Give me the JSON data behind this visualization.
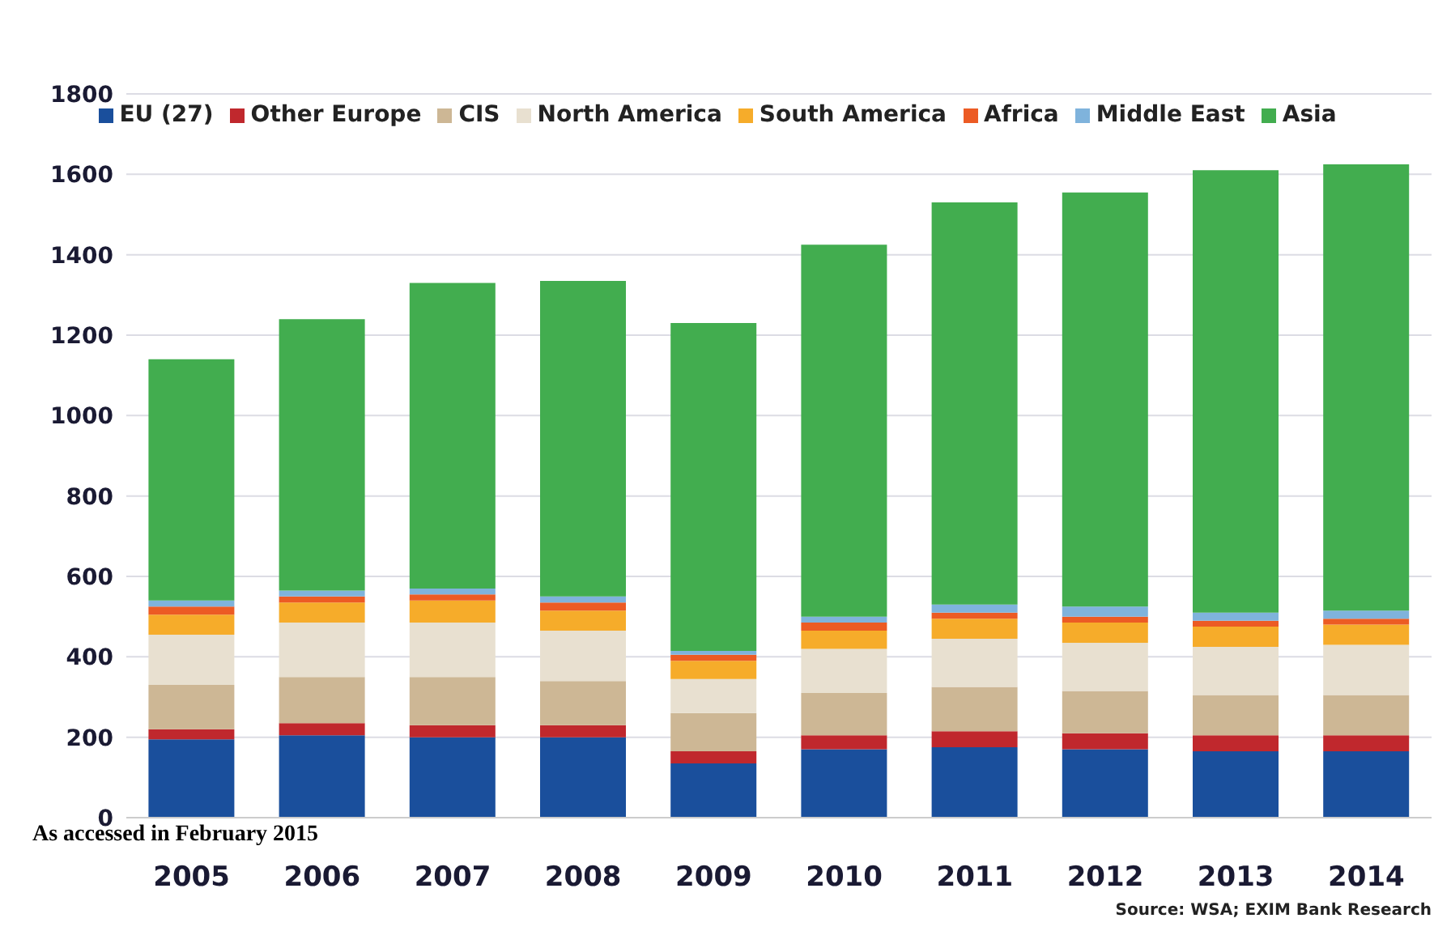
{
  "chart_data": {
    "type": "bar",
    "stacked": true,
    "categories": [
      "2005",
      "2006",
      "2007",
      "2008",
      "2009",
      "2010",
      "2011",
      "2012",
      "2013",
      "2014"
    ],
    "series": [
      {
        "name": "EU (27)",
        "color": "#1a4f9c",
        "values": [
          195,
          205,
          200,
          200,
          135,
          170,
          175,
          170,
          165,
          165
        ]
      },
      {
        "name": "Other Europe",
        "color": "#c0282d",
        "values": [
          25,
          30,
          30,
          30,
          30,
          35,
          40,
          40,
          40,
          40
        ]
      },
      {
        "name": "CIS",
        "color": "#cdb795",
        "values": [
          110,
          115,
          120,
          110,
          95,
          105,
          110,
          105,
          100,
          100
        ]
      },
      {
        "name": "North America",
        "color": "#e8e0d0",
        "values": [
          125,
          135,
          135,
          125,
          85,
          110,
          120,
          120,
          120,
          125
        ]
      },
      {
        "name": "South America",
        "color": "#f6ac2a",
        "values": [
          50,
          50,
          55,
          50,
          45,
          45,
          50,
          50,
          50,
          50
        ]
      },
      {
        "name": "Africa",
        "color": "#ec5b24",
        "values": [
          20,
          15,
          15,
          20,
          15,
          20,
          15,
          15,
          15,
          15
        ]
      },
      {
        "name": "Middle East",
        "color": "#7fb3dc",
        "values": [
          15,
          15,
          15,
          15,
          10,
          15,
          20,
          25,
          20,
          20
        ]
      },
      {
        "name": "Asia",
        "color": "#42ad4f",
        "values": [
          600,
          675,
          760,
          785,
          815,
          925,
          1000,
          1030,
          1100,
          1110
        ]
      }
    ],
    "ylim": [
      0,
      1800
    ],
    "yticks": [
      0,
      200,
      400,
      600,
      800,
      1000,
      1200,
      1400,
      1600,
      1800
    ],
    "grid": "y",
    "legend": "top",
    "annotations": [
      "As accessed in February 2015",
      "Source: WSA; EXIM Bank Research"
    ]
  }
}
